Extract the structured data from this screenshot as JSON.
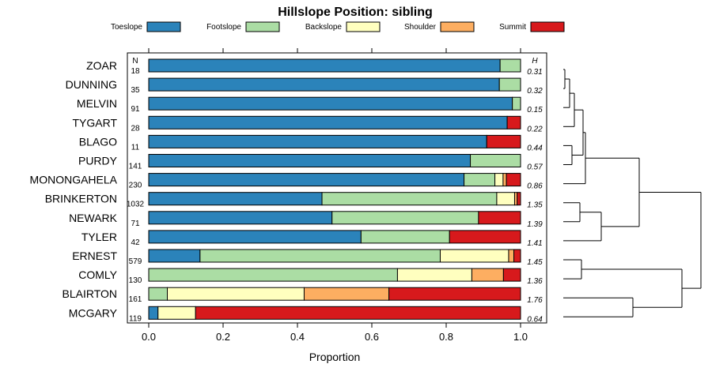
{
  "chart_data": {
    "type": "bar",
    "stacked": true,
    "orientation": "horizontal",
    "title": "Hillslope Position: sibling",
    "xlabel": "Proportion",
    "ylabel": "",
    "xlim": [
      0,
      1
    ],
    "xticks": [
      "0.0",
      "0.2",
      "0.4",
      "0.6",
      "0.8",
      "1.0"
    ],
    "n_header": "N",
    "h_header": "H",
    "highlight": "PURDY",
    "categories": [
      "ZOAR",
      "DUNNING",
      "MELVIN",
      "TYGART",
      "BLAGO",
      "PURDY",
      "MONONGAHELA",
      "BRINKERTON",
      "NEWARK",
      "TYLER",
      "ERNEST",
      "COMLY",
      "BLAIRTON",
      "MCGARY"
    ],
    "n": [
      "18",
      "35",
      "91",
      "28",
      "11",
      "141",
      "230",
      "1032",
      "71",
      "42",
      "579",
      "130",
      "161",
      "119"
    ],
    "h": [
      "0.31",
      "0.32",
      "0.15",
      "0.22",
      "0.44",
      "0.57",
      "0.86",
      "1.35",
      "1.39",
      "1.41",
      "1.45",
      "1.36",
      "1.76",
      "0.64"
    ],
    "series": [
      {
        "name": "Toeslope",
        "color": "#2b83ba",
        "values": [
          0.945,
          0.943,
          0.978,
          0.964,
          0.909,
          0.865,
          0.848,
          0.466,
          0.493,
          0.571,
          0.138,
          0.0,
          0.0,
          0.025
        ]
      },
      {
        "name": "Footslope",
        "color": "#abdda4",
        "values": [
          0.055,
          0.057,
          0.022,
          0.0,
          0.0,
          0.135,
          0.083,
          0.47,
          0.394,
          0.238,
          0.646,
          0.669,
          0.05,
          0.0
        ]
      },
      {
        "name": "Backslope",
        "color": "#ffffbf",
        "values": [
          0.0,
          0.0,
          0.0,
          0.0,
          0.0,
          0.0,
          0.022,
          0.048,
          0.0,
          0.0,
          0.184,
          0.2,
          0.368,
          0.101
        ]
      },
      {
        "name": "Shoulder",
        "color": "#fdae61",
        "values": [
          0.0,
          0.0,
          0.0,
          0.0,
          0.0,
          0.0,
          0.009,
          0.007,
          0.0,
          0.0,
          0.014,
          0.085,
          0.228,
          0.0
        ]
      },
      {
        "name": "Summit",
        "color": "#d7191c",
        "values": [
          0.0,
          0.0,
          0.0,
          0.036,
          0.091,
          0.0,
          0.038,
          0.009,
          0.113,
          0.191,
          0.018,
          0.046,
          0.354,
          0.874
        ]
      }
    ]
  }
}
